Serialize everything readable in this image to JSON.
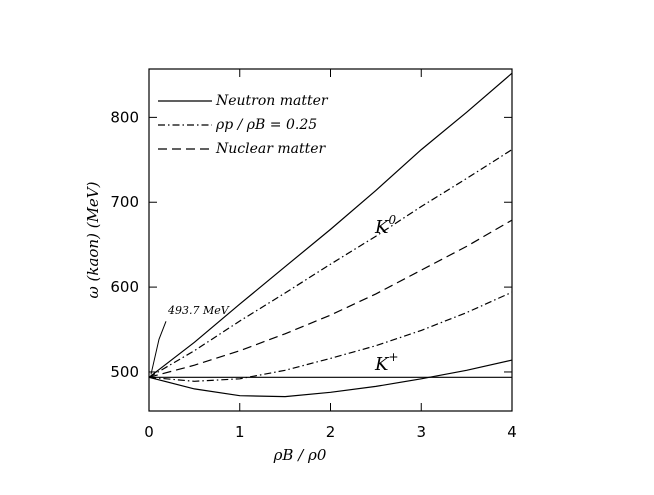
{
  "chart_data": {
    "type": "line",
    "x": [
      0,
      0.5,
      1,
      1.5,
      2,
      2.5,
      3,
      3.5,
      4
    ],
    "series": [
      {
        "name": "Neutron matter",
        "color": "#000000",
        "dash": "solid",
        "values": [
          493.7,
          535,
          580,
          624,
          668,
          714,
          762,
          806,
          852
        ]
      },
      {
        "name": "ρp / ρB = 0.25",
        "color": "#000000",
        "dash": "dashdot",
        "values": [
          493.7,
          525,
          560,
          593,
          627,
          660,
          695,
          728,
          762
        ]
      },
      {
        "name": "Nuclear matter",
        "color": "#000000",
        "dash": "dashed",
        "values": [
          493.7,
          508,
          525,
          545,
          567,
          592,
          620,
          648,
          679
        ]
      },
      {
        "name": "ρp / ρB = 0.25",
        "color": "#000000",
        "dash": "dashdot",
        "values": [
          493.7,
          489,
          492,
          502,
          516,
          531,
          549,
          570,
          594
        ]
      },
      {
        "name": "Neutron matter",
        "color": "#000000",
        "dash": "solid",
        "values": [
          493.7,
          480,
          472,
          471,
          476,
          483,
          492,
          502,
          514
        ]
      }
    ],
    "reference_line": 493.7,
    "annotations": [
      {
        "text": "493.7 MeV"
      },
      {
        "text": "K",
        "sup": "0"
      },
      {
        "text": "K",
        "sup": "+"
      }
    ],
    "x_label": "ρB / ρ0",
    "y_label": "ω (kaon) (MeV)",
    "xlim": [
      0,
      4
    ],
    "xticks": [
      0,
      1,
      2,
      3,
      4
    ],
    "ylim": [
      454,
      857
    ],
    "yticks": [
      500,
      600,
      700,
      800
    ],
    "legend": "upper left"
  }
}
